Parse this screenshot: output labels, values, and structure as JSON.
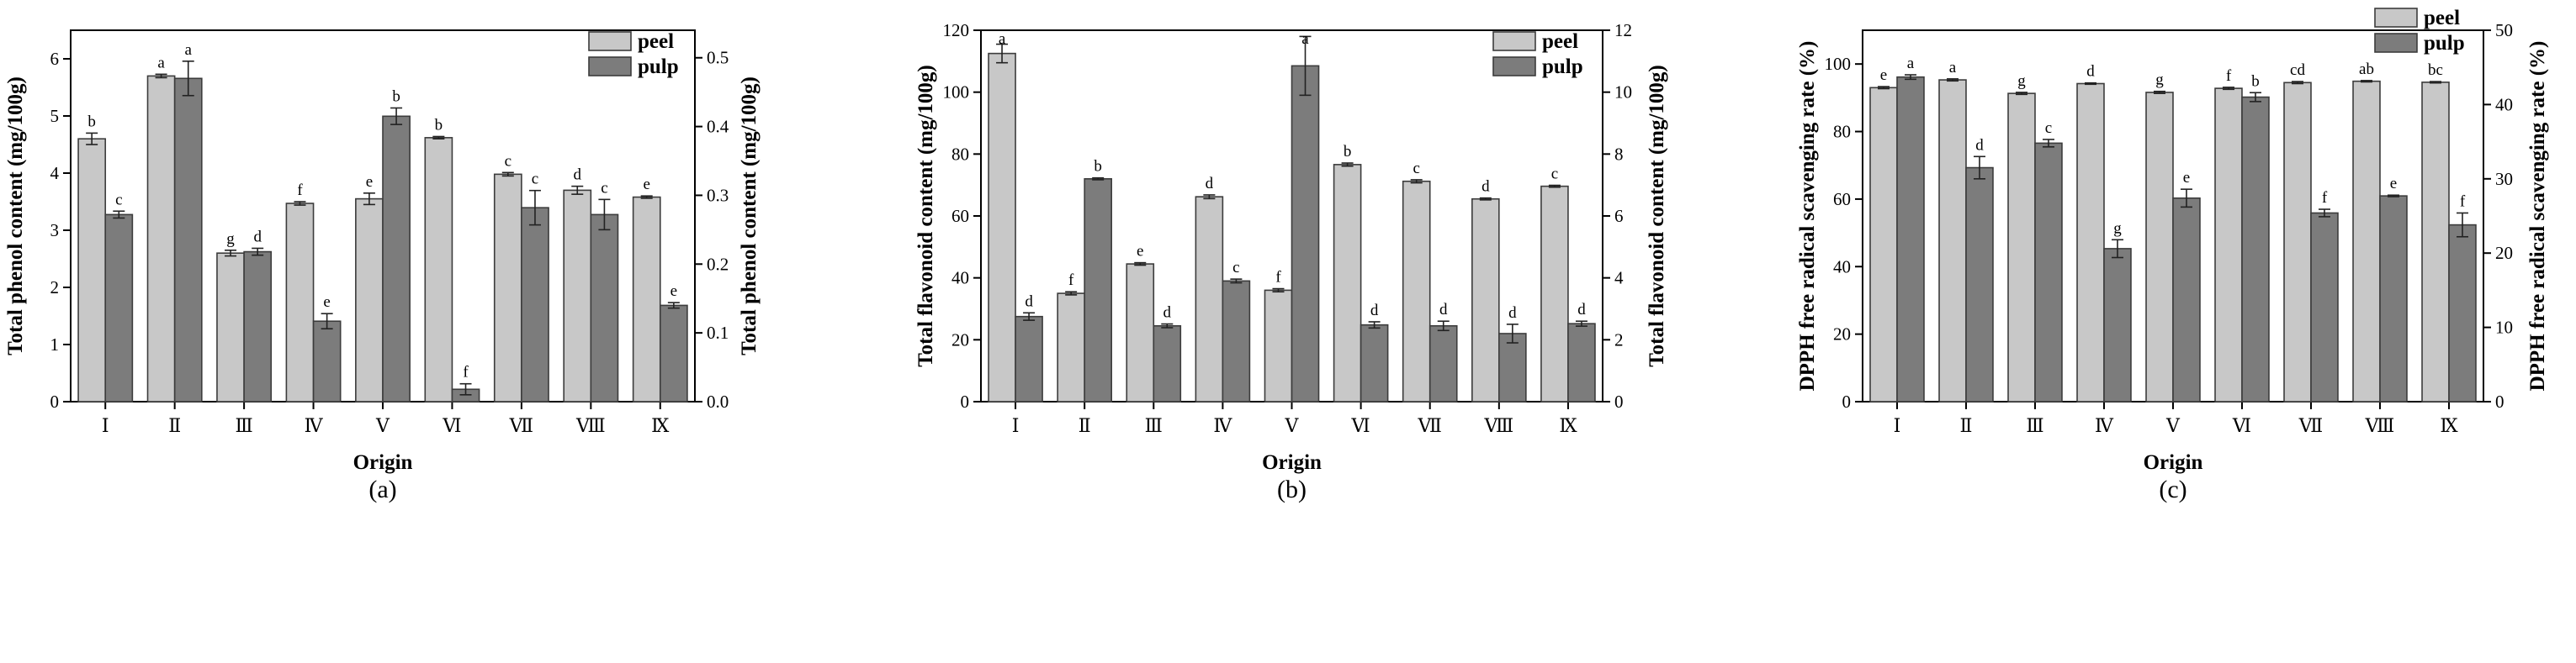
{
  "colors": {
    "peel": "#c8c8c8",
    "pulp": "#7c7c7c",
    "stroke": "#3c3c3c"
  },
  "chart_data": [
    {
      "type": "bar",
      "panel_label": "(a)",
      "xlabel": "Origin",
      "ylabel_left": "Total phenol content (mg/100g)",
      "ylabel_right": "Total phenol content (mg/100g)",
      "categories": [
        "Ⅰ",
        "Ⅱ",
        "Ⅲ",
        "Ⅳ",
        "Ⅴ",
        "Ⅵ",
        "Ⅶ",
        "Ⅷ",
        "Ⅸ"
      ],
      "ylim_left": [
        0,
        6.5
      ],
      "ylim_right": [
        0,
        0.54
      ],
      "yticks_left": [
        0,
        1,
        2,
        3,
        4,
        5,
        6
      ],
      "yticks_right": [
        0.0,
        0.1,
        0.2,
        0.3,
        0.4,
        0.5
      ],
      "ytick_decimals_left": 0,
      "ytick_decimals_right": 1,
      "legend": [
        "peel",
        "pulp"
      ],
      "series": [
        {
          "name": "peel",
          "axis": "left",
          "values": [
            4.6,
            5.7,
            2.6,
            3.47,
            3.55,
            4.62,
            3.98,
            3.7,
            3.58
          ],
          "errors": [
            0.1,
            0.03,
            0.05,
            0.03,
            0.1,
            0.02,
            0.03,
            0.07,
            0.02
          ],
          "letters": [
            "b",
            "a",
            "g",
            "f",
            "e",
            "b",
            "c",
            "d",
            "e"
          ]
        },
        {
          "name": "pulp",
          "axis": "right",
          "values": [
            0.272,
            0.47,
            0.218,
            0.117,
            0.415,
            0.018,
            0.282,
            0.272,
            0.14
          ],
          "errors": [
            0.005,
            0.025,
            0.005,
            0.011,
            0.012,
            0.008,
            0.025,
            0.022,
            0.004
          ],
          "letters": [
            "c",
            "a",
            "d",
            "e",
            "b",
            "f",
            "c",
            "c",
            "e"
          ]
        }
      ]
    },
    {
      "type": "bar",
      "panel_label": "(b)",
      "xlabel": "Origin",
      "ylabel_left": "Total flavonoid content (mg/100g)",
      "ylabel_right": "Total flavonoid content (mg/100g)",
      "categories": [
        "Ⅰ",
        "Ⅱ",
        "Ⅲ",
        "Ⅳ",
        "Ⅴ",
        "Ⅵ",
        "Ⅶ",
        "Ⅷ",
        "Ⅸ"
      ],
      "ylim_left": [
        0,
        120
      ],
      "ylim_right": [
        0,
        12
      ],
      "yticks_left": [
        0,
        20,
        40,
        60,
        80,
        100,
        120
      ],
      "yticks_right": [
        0,
        2,
        4,
        6,
        8,
        10,
        12
      ],
      "ytick_decimals_left": 0,
      "ytick_decimals_right": 0,
      "legend": [
        "peel",
        "pulp"
      ],
      "series": [
        {
          "name": "peel",
          "axis": "left",
          "values": [
            112.5,
            35,
            44.5,
            66.2,
            36,
            76.6,
            71.2,
            65.5,
            69.6
          ],
          "errors": [
            3,
            0.5,
            0.4,
            0.6,
            0.5,
            0.5,
            0.5,
            0.3,
            0.3
          ],
          "letters": [
            "a",
            "f",
            "e",
            "d",
            "f",
            "b",
            "c",
            "d",
            "c"
          ]
        },
        {
          "name": "pulp",
          "axis": "right",
          "values": [
            2.75,
            7.2,
            2.45,
            3.9,
            10.85,
            2.48,
            2.45,
            2.2,
            2.52
          ],
          "errors": [
            0.12,
            0.03,
            0.06,
            0.06,
            0.95,
            0.1,
            0.15,
            0.3,
            0.08
          ],
          "letters": [
            "d",
            "b",
            "d",
            "c",
            "a",
            "d",
            "d",
            "d",
            "d"
          ]
        }
      ]
    },
    {
      "type": "bar",
      "panel_label": "(c)",
      "xlabel": "Origin",
      "ylabel_left": "DPPH free radical scavenging rate (%)",
      "ylabel_right": "DPPH free radical scavenging rate (%)",
      "categories": [
        "Ⅰ",
        "Ⅱ",
        "Ⅲ",
        "Ⅳ",
        "Ⅴ",
        "Ⅵ",
        "Ⅶ",
        "Ⅷ",
        "Ⅸ"
      ],
      "ylim_left": [
        0,
        110
      ],
      "ylim_right": [
        0,
        50
      ],
      "yticks_left": [
        0,
        20,
        40,
        60,
        80,
        100
      ],
      "yticks_right": [
        0,
        10,
        20,
        30,
        40,
        50
      ],
      "ytick_decimals_left": 0,
      "ytick_decimals_right": 0,
      "legend": [
        "peel",
        "pulp"
      ],
      "series": [
        {
          "name": "peel",
          "axis": "left",
          "values": [
            93,
            95.3,
            91.3,
            94.2,
            91.6,
            92.8,
            94.5,
            94.9,
            94.6
          ],
          "errors": [
            0.3,
            0.3,
            0.3,
            0.2,
            0.3,
            0.3,
            0.3,
            0.2,
            0.2
          ],
          "letters": [
            "e",
            "a",
            "g",
            "d",
            "g",
            "f",
            "cd",
            "ab",
            "bc"
          ]
        },
        {
          "name": "pulp",
          "axis": "right",
          "values": [
            43.7,
            31.5,
            34.8,
            20.6,
            27.4,
            41,
            25.4,
            27.7,
            23.8
          ],
          "errors": [
            0.3,
            1.5,
            0.5,
            1.2,
            1.2,
            0.6,
            0.5,
            0.1,
            1.6
          ],
          "letters": [
            "a",
            "d",
            "c",
            "g",
            "e",
            "b",
            "f",
            "e",
            "f"
          ]
        }
      ]
    }
  ]
}
